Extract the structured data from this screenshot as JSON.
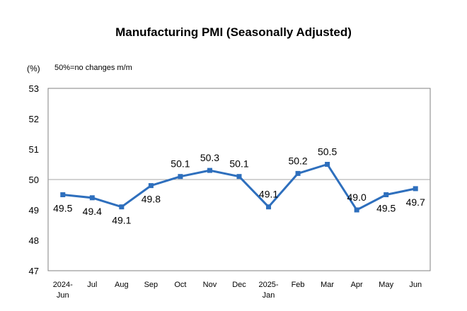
{
  "chart_data": {
    "type": "line",
    "title": "Manufacturing PMI (Seasonally Adjusted)",
    "unit_label": "(%)",
    "note": "50%=no changes m/m",
    "xlabel": "",
    "ylabel": "",
    "ylim": [
      47,
      53
    ],
    "yticks": [
      47,
      48,
      49,
      50,
      51,
      52,
      53
    ],
    "reference_line": 50,
    "grid": false,
    "categories": [
      [
        "2024-",
        "Jun"
      ],
      [
        "Jul"
      ],
      [
        "Aug"
      ],
      [
        "Sep"
      ],
      [
        "Oct"
      ],
      [
        "Nov"
      ],
      [
        "Dec"
      ],
      [
        "2025-",
        "Jan"
      ],
      [
        "Feb"
      ],
      [
        "Mar"
      ],
      [
        "Apr"
      ],
      [
        "May"
      ],
      [
        "Jun"
      ]
    ],
    "series": [
      {
        "values": [
          49.5,
          49.4,
          49.1,
          49.8,
          50.1,
          50.3,
          50.1,
          49.1,
          50.2,
          50.5,
          49.0,
          49.5,
          49.7
        ],
        "data_labels": [
          "49.5",
          "49.4",
          "49.1",
          "49.8",
          "50.1",
          "50.3",
          "50.1",
          "49.1",
          "50.2",
          "50.5",
          "49.0",
          "49.5",
          "49.7"
        ],
        "label_positions": [
          "below",
          "below",
          "below",
          "below",
          "above",
          "above",
          "above",
          "above",
          "above",
          "above",
          "above",
          "below",
          "below"
        ]
      }
    ],
    "colors": {
      "line": "#2e6fbd",
      "marker": "#2e6fbd",
      "axis": "#808080",
      "reference": "#a6a6a6"
    }
  }
}
